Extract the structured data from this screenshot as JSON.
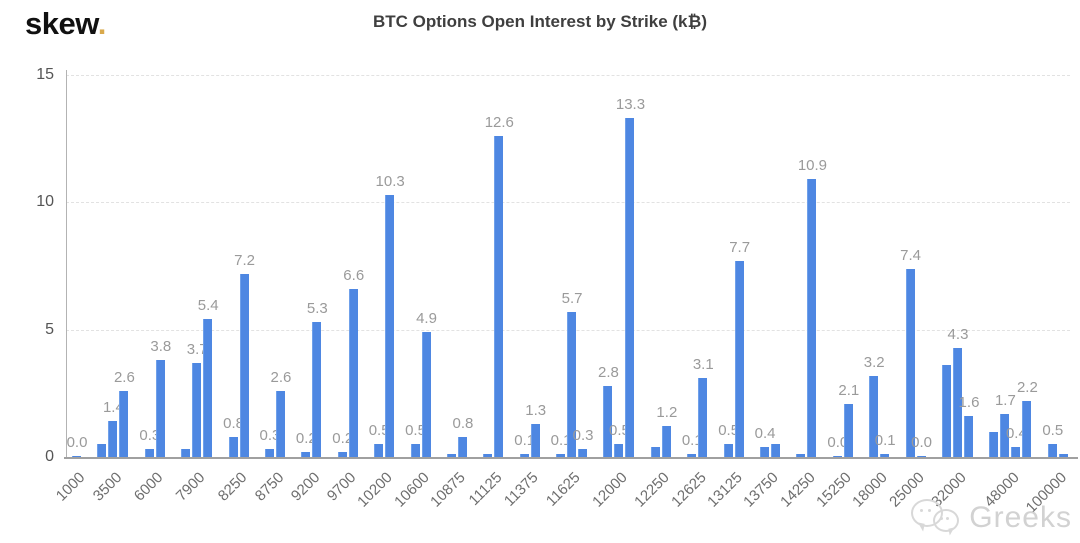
{
  "logo": {
    "text": "skew",
    "dot": "."
  },
  "header": {
    "title": "BTC Options Open Interest by Strike (k₿)"
  },
  "watermark": {
    "text": "Greeks",
    "icon": "chat-bubbles-icon"
  },
  "colors": {
    "bar": "#4e87e2",
    "bar_edge": "#6fa0ea",
    "value_label": "#9a9a9a",
    "tick_label": "#6e6e6e",
    "y_label": "#555555",
    "title": "#3f3f3f",
    "grid": "#e2e2e2",
    "axis": "#a0a0a0",
    "logo_dot": "#d9a94c",
    "watermark": "#d2d2d2"
  },
  "chart_data": {
    "type": "bar",
    "title": "BTC Options Open Interest by Strike (k₿)",
    "xlabel": "",
    "ylabel": "",
    "ylim": [
      0,
      15
    ],
    "yticks": [
      15,
      10,
      5,
      0
    ],
    "grid": "horizontal-dashed",
    "legend": "none",
    "x_tick_rotation": 45,
    "groups": [
      {
        "strike": "1000",
        "bars": [
          {
            "v": 0.0,
            "label": "0.0"
          }
        ]
      },
      {
        "strike": "3500",
        "bars": [
          {
            "v": 0.5
          },
          {
            "v": 1.4,
            "label": "1.4"
          },
          {
            "v": 2.6,
            "label": "2.6"
          }
        ]
      },
      {
        "strike": "6000",
        "bars": [
          {
            "v": 0.3,
            "label": "0.3"
          },
          {
            "v": 3.8,
            "label": "3.8"
          }
        ]
      },
      {
        "strike": "7900",
        "bars": [
          {
            "v": 0.3
          },
          {
            "v": 3.7,
            "label": "3.7"
          },
          {
            "v": 5.4,
            "label": "5.4"
          }
        ]
      },
      {
        "strike": "8250",
        "bars": [
          {
            "v": 0.8,
            "label": "0.8"
          },
          {
            "v": 7.2,
            "label": "7.2"
          }
        ]
      },
      {
        "strike": "8750",
        "bars": [
          {
            "v": 0.3,
            "label": "0.3"
          },
          {
            "v": 2.6,
            "label": "2.6"
          }
        ]
      },
      {
        "strike": "9200",
        "bars": [
          {
            "v": 0.2,
            "label": "0.2"
          },
          {
            "v": 5.3,
            "label": "5.3"
          }
        ]
      },
      {
        "strike": "9700",
        "bars": [
          {
            "v": 0.2,
            "label": "0.2"
          },
          {
            "v": 6.6,
            "label": "6.6"
          }
        ]
      },
      {
        "strike": "10200",
        "bars": [
          {
            "v": 0.5,
            "label": "0.5"
          },
          {
            "v": 10.3,
            "label": "10.3"
          }
        ]
      },
      {
        "strike": "10600",
        "bars": [
          {
            "v": 0.5,
            "label": "0.5"
          },
          {
            "v": 4.9,
            "label": "4.9"
          }
        ]
      },
      {
        "strike": "10875",
        "bars": [
          {
            "v": 0.1
          },
          {
            "v": 0.8,
            "label": "0.8"
          }
        ]
      },
      {
        "strike": "11125",
        "bars": [
          {
            "v": 0.1
          },
          {
            "v": 12.6,
            "label": "12.6"
          }
        ]
      },
      {
        "strike": "11375",
        "bars": [
          {
            "v": 0.1,
            "label": "0.1"
          },
          {
            "v": 1.3,
            "label": "1.3"
          }
        ]
      },
      {
        "strike": "11625",
        "bars": [
          {
            "v": 0.1,
            "label": "0.1"
          },
          {
            "v": 5.7,
            "label": "5.7"
          },
          {
            "v": 0.3,
            "label": "0.3"
          }
        ]
      },
      {
        "strike": "12000",
        "bars": [
          {
            "v": 2.8,
            "label": "2.8"
          },
          {
            "v": 0.5,
            "label": "0.5"
          },
          {
            "v": 13.3,
            "label": "13.3"
          }
        ]
      },
      {
        "strike": "12250",
        "bars": [
          {
            "v": 0.4
          },
          {
            "v": 1.2,
            "label": "1.2"
          }
        ]
      },
      {
        "strike": "12625",
        "bars": [
          {
            "v": 0.1,
            "label": "0.1"
          },
          {
            "v": 3.1,
            "label": "3.1"
          }
        ]
      },
      {
        "strike": "13125",
        "bars": [
          {
            "v": 0.5,
            "label": "0.5"
          },
          {
            "v": 7.7,
            "label": "7.7"
          }
        ]
      },
      {
        "strike": "13750",
        "bars": [
          {
            "v": 0.4,
            "label": "0.4"
          },
          {
            "v": 0.5
          }
        ]
      },
      {
        "strike": "14250",
        "bars": [
          {
            "v": 0.1
          },
          {
            "v": 10.9,
            "label": "10.9"
          }
        ]
      },
      {
        "strike": "15250",
        "bars": [
          {
            "v": 0.0,
            "label": "0.0"
          },
          {
            "v": 2.1,
            "label": "2.1"
          }
        ]
      },
      {
        "strike": "18000",
        "bars": [
          {
            "v": 3.2,
            "label": "3.2"
          },
          {
            "v": 0.1,
            "label": "0.1"
          }
        ]
      },
      {
        "strike": "25000",
        "bars": [
          {
            "v": 7.4,
            "label": "7.4"
          },
          {
            "v": 0.0,
            "label": "0.0"
          }
        ]
      },
      {
        "strike": "32000",
        "bars": [
          {
            "v": 3.6
          },
          {
            "v": 4.3,
            "label": "4.3"
          },
          {
            "v": 1.6,
            "label": "1.6"
          }
        ]
      },
      {
        "strike": "48000",
        "bars": [
          {
            "v": 1.0
          },
          {
            "v": 1.7,
            "label": "1.7"
          },
          {
            "v": 0.4,
            "label": "0.4"
          },
          {
            "v": 2.2,
            "label": "2.2"
          }
        ]
      },
      {
        "strike": "100000",
        "bars": [
          {
            "v": 0.5,
            "label": "0.5"
          },
          {
            "v": 0.1
          }
        ]
      }
    ]
  }
}
